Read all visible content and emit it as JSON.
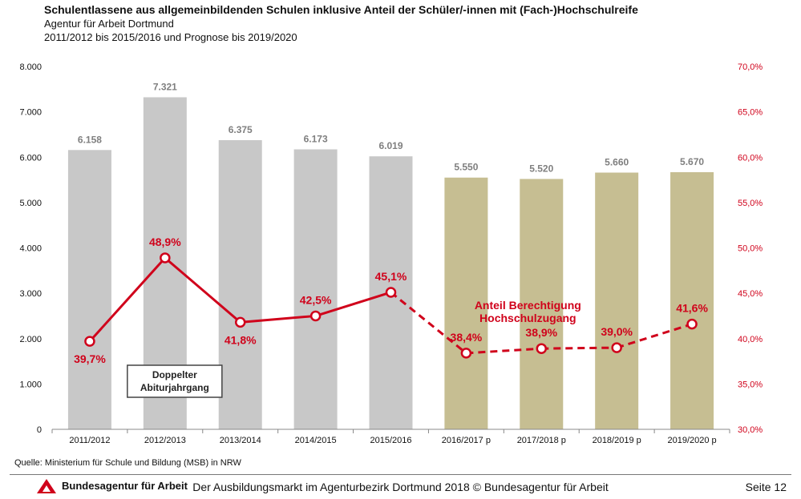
{
  "header": {
    "title": "Schulentlassene aus allgemeinbildenden Schulen inklusive Anteil der Schüler/-innen mit (Fach-)Hochschulreife",
    "subtitle1": "Agentur für Arbeit Dortmund",
    "subtitle2": "2011/2012 bis 2015/2016 und Prognose bis 2019/2020"
  },
  "chart_data": {
    "type": "bar",
    "categories": [
      "2011/2012",
      "2012/2013",
      "2013/2014",
      "2014/2015",
      "2015/2016",
      "2016/2017 p",
      "2017/2018 p",
      "2018/2019 p",
      "2019/2020 p"
    ],
    "bar_values": [
      6158,
      7321,
      6375,
      6173,
      6019,
      5550,
      5520,
      5660,
      5670
    ],
    "bar_labels": [
      "6.158",
      "7.321",
      "6.375",
      "6.173",
      "6.019",
      "5.550",
      "5.520",
      "5.660",
      "5.670"
    ],
    "line_values": [
      39.7,
      48.9,
      41.8,
      42.5,
      45.1,
      38.4,
      38.9,
      39.0,
      41.6
    ],
    "line_labels": [
      "39,7%",
      "48,9%",
      "41,8%",
      "42,5%",
      "45,1%",
      "38,4%",
      "38,9%",
      "39,0%",
      "41,6%"
    ],
    "forecast_start_index": 5,
    "y_left_range": [
      0,
      8000
    ],
    "y_left_ticks": [
      "0",
      "1.000",
      "2.000",
      "3.000",
      "4.000",
      "5.000",
      "6.000",
      "7.000",
      "8.000"
    ],
    "y_right_range": [
      30,
      70
    ],
    "y_right_ticks": [
      "30,0%",
      "35,0%",
      "40,0%",
      "45,0%",
      "50,0%",
      "55,0%",
      "60,0%",
      "65,0%",
      "70,0%"
    ],
    "grid": false,
    "colors": {
      "bar_actual": "#c8c8c8",
      "bar_forecast": "#c6be92",
      "line": "#d0021b",
      "bar_label": "#7f7f7f"
    },
    "annotations": {
      "box_line1": "Doppelter",
      "box_line2": "Abiturjahrgang",
      "series_label_line1": "Anteil Berechtigung",
      "series_label_line2": "Hochschulzugang"
    }
  },
  "footer": {
    "source": "Quelle: Ministerium für Schule und Bildung (MSB) in NRW",
    "org": "Bundesagentur für Arbeit",
    "center": "Der Ausbildungsmarkt im Agenturbezirk Dortmund 2018 © Bundesagentur für Arbeit",
    "page": "Seite 12"
  }
}
